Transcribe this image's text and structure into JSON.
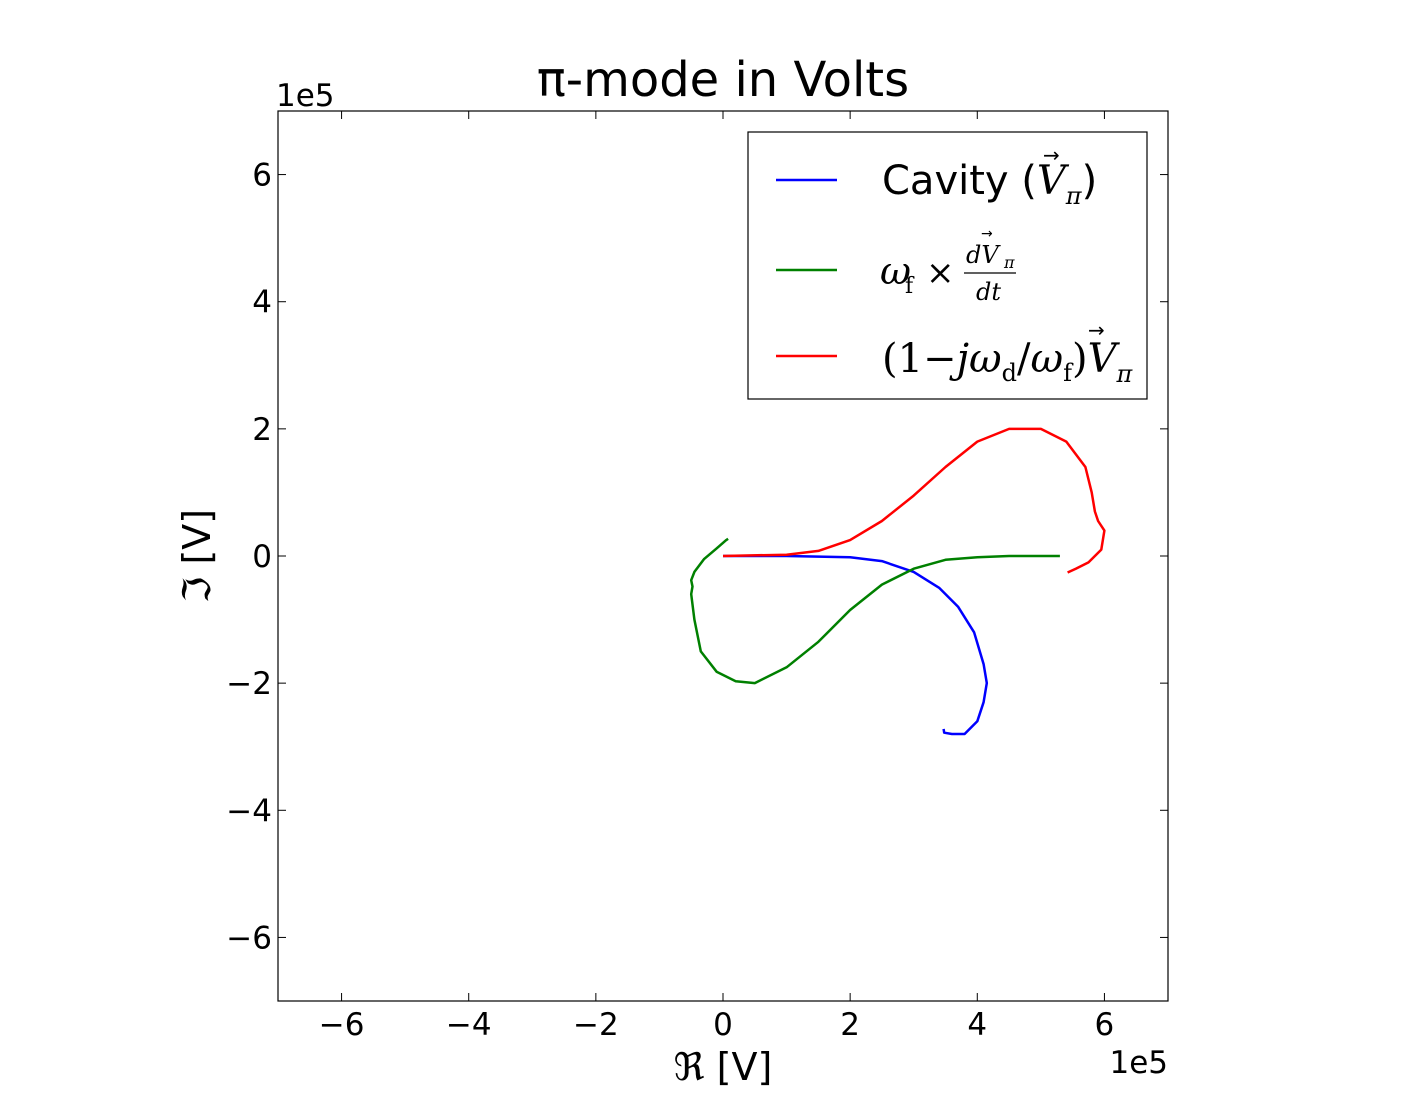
{
  "chart_data": {
    "type": "line",
    "title": "π-mode in Volts",
    "xlabel": "ℜ [V]",
    "ylabel": "ℑ [V]",
    "x_offset_text": "1e5",
    "y_offset_text": "1e5",
    "xlim": [
      -7,
      7
    ],
    "ylim": [
      -7,
      7
    ],
    "scale_note": "values in units of 1e5 V",
    "xticks": [
      -6,
      -4,
      -2,
      0,
      2,
      4,
      6
    ],
    "yticks": [
      -6,
      -4,
      -2,
      0,
      2,
      4,
      6
    ],
    "xtick_labels": [
      "−6",
      "−4",
      "−2",
      "0",
      "2",
      "4",
      "6"
    ],
    "ytick_labels": [
      "−6",
      "−4",
      "−2",
      "0",
      "2",
      "4",
      "6"
    ],
    "grid": false,
    "legend_position": "top-right",
    "series": [
      {
        "name": "Cavity (Vπ)",
        "color": "#0000ff",
        "points": [
          [
            0,
            0
          ],
          [
            1.0,
            0.0
          ],
          [
            2.0,
            -0.02
          ],
          [
            2.5,
            -0.08
          ],
          [
            3.0,
            -0.25
          ],
          [
            3.4,
            -0.5
          ],
          [
            3.7,
            -0.8
          ],
          [
            3.95,
            -1.2
          ],
          [
            4.1,
            -1.7
          ],
          [
            4.15,
            -2.0
          ],
          [
            4.1,
            -2.3
          ],
          [
            4.0,
            -2.6
          ],
          [
            3.8,
            -2.8
          ],
          [
            3.6,
            -2.8
          ],
          [
            3.48,
            -2.78
          ],
          [
            3.47,
            -2.72
          ]
        ]
      },
      {
        "name": "ωf × dVπ/dt",
        "color": "#008000",
        "points": [
          [
            5.3,
            0.0
          ],
          [
            4.5,
            0.0
          ],
          [
            4.0,
            -0.02
          ],
          [
            3.5,
            -0.06
          ],
          [
            3.0,
            -0.2
          ],
          [
            2.5,
            -0.45
          ],
          [
            2.0,
            -0.85
          ],
          [
            1.5,
            -1.35
          ],
          [
            1.0,
            -1.75
          ],
          [
            0.5,
            -2.0
          ],
          [
            0.2,
            -1.97
          ],
          [
            -0.1,
            -1.82
          ],
          [
            -0.35,
            -1.5
          ],
          [
            -0.45,
            -1.0
          ],
          [
            -0.5,
            -0.6
          ],
          [
            -0.48,
            -0.48
          ],
          [
            -0.5,
            -0.38
          ],
          [
            -0.45,
            -0.25
          ],
          [
            -0.3,
            -0.05
          ],
          [
            -0.1,
            0.12
          ],
          [
            0.05,
            0.25
          ],
          [
            0.08,
            0.27
          ]
        ]
      },
      {
        "name": "(1−jωd/ωf)Vπ",
        "color": "#ff0000",
        "points": [
          [
            0,
            0
          ],
          [
            1.0,
            0.02
          ],
          [
            1.5,
            0.08
          ],
          [
            2.0,
            0.25
          ],
          [
            2.5,
            0.55
          ],
          [
            3.0,
            0.95
          ],
          [
            3.5,
            1.4
          ],
          [
            4.0,
            1.8
          ],
          [
            4.5,
            2.0
          ],
          [
            5.0,
            2.0
          ],
          [
            5.4,
            1.8
          ],
          [
            5.7,
            1.4
          ],
          [
            5.8,
            1.0
          ],
          [
            5.85,
            0.7
          ],
          [
            5.9,
            0.55
          ],
          [
            6.0,
            0.4
          ],
          [
            5.95,
            0.1
          ],
          [
            5.75,
            -0.1
          ],
          [
            5.55,
            -0.2
          ],
          [
            5.42,
            -0.26
          ]
        ]
      }
    ]
  },
  "legend": {
    "entries": [
      {
        "prefix": "Cavity (",
        "sym": "V",
        "sub": "π",
        "suffix": ")"
      },
      {
        "w": "ω",
        "wsub": "f",
        "times": "×",
        "num": "dV",
        "numsub": "π",
        "den": "dt"
      },
      {
        "pre": "(1−",
        "j": "j",
        "w": "ω",
        "dsub": "d",
        "slash": "/",
        "w2": "ω",
        "fsub": "f",
        "close": ")",
        "sym": "V",
        "sub": "π"
      }
    ]
  }
}
